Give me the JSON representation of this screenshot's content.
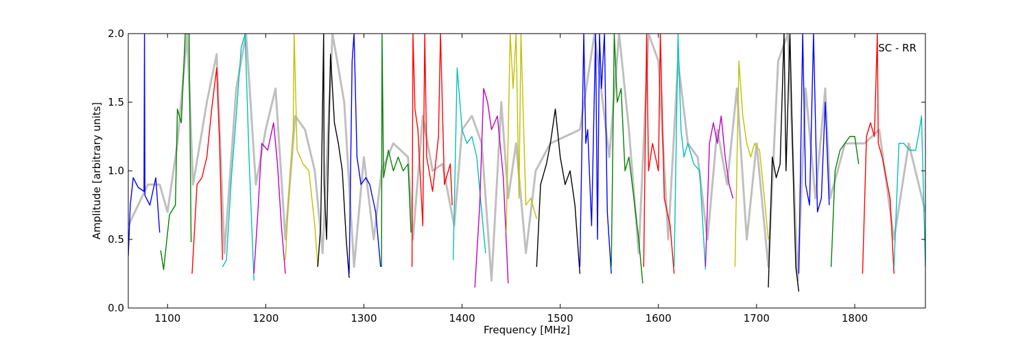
{
  "chart_data": {
    "type": "line",
    "title": "",
    "annotation": "SC - RR",
    "xlabel": "Frequency [MHz]",
    "ylabel": "Amplitude [arbitrary units]",
    "xlim": [
      1060,
      1872
    ],
    "ylim": [
      0.0,
      2.0
    ],
    "xticks": [
      1100,
      1200,
      1300,
      1400,
      1500,
      1600,
      1700,
      1800
    ],
    "xtick_labels": [
      "1100",
      "1200",
      "1300",
      "1400",
      "1500",
      "1600",
      "1700",
      "1800"
    ],
    "yticks": [
      0.0,
      0.5,
      1.0,
      1.5,
      2.0
    ],
    "ytick_labels": [
      "0.0",
      "0.5",
      "1.0",
      "1.5",
      "2.0"
    ],
    "grid": false,
    "legend": "none",
    "reference_series": {
      "color": "#bfbfbf",
      "x": [
        1060,
        1080,
        1092,
        1100,
        1110,
        1120,
        1126,
        1140,
        1150,
        1158,
        1170,
        1180,
        1190,
        1200,
        1210,
        1220,
        1230,
        1240,
        1250,
        1258,
        1268,
        1280,
        1290,
        1300,
        1310,
        1318,
        1330,
        1345,
        1350,
        1360,
        1370,
        1380,
        1392,
        1400,
        1410,
        1420,
        1430,
        1440,
        1447,
        1455,
        1465,
        1475,
        1490,
        1505,
        1520,
        1535,
        1550,
        1560,
        1570,
        1580,
        1590,
        1600,
        1610,
        1620,
        1630,
        1640,
        1650,
        1660,
        1670,
        1680,
        1690,
        1700,
        1712,
        1722,
        1732,
        1742,
        1750,
        1760,
        1770,
        1775,
        1790,
        1810,
        1825,
        1840,
        1855,
        1872
      ],
      "y": [
        0.6,
        0.9,
        0.9,
        0.7,
        1.2,
        2.0,
        0.9,
        1.5,
        1.85,
        0.4,
        1.6,
        2.0,
        0.9,
        1.3,
        1.6,
        0.5,
        1.4,
        1.3,
        1.0,
        0.4,
        2.0,
        1.5,
        0.3,
        1.1,
        0.5,
        1.0,
        1.2,
        1.1,
        0.5,
        1.4,
        1.0,
        1.05,
        0.6,
        1.3,
        1.4,
        1.2,
        0.2,
        1.5,
        0.8,
        1.2,
        0.4,
        1.0,
        1.2,
        1.25,
        1.3,
        2.0,
        1.1,
        2.0,
        1.3,
        0.4,
        2.0,
        1.8,
        0.5,
        1.8,
        1.2,
        1.1,
        0.5,
        1.3,
        0.9,
        1.6,
        0.5,
        1.2,
        0.3,
        1.8,
        2.0,
        0.2,
        1.6,
        0.8,
        1.6,
        0.8,
        1.2,
        1.2,
        1.3,
        0.5,
        1.2,
        0.7
      ]
    },
    "series": [
      {
        "color": "#0000ff",
        "x": [
          1060,
          1062,
          1065,
          1070,
          1076,
          1076.5,
          1077,
          1082,
          1088,
          1092
        ],
        "y": [
          0.38,
          0.75,
          0.95,
          0.88,
          0.85,
          2.0,
          0.82,
          0.75,
          0.95,
          0.55
        ]
      },
      {
        "color": "#008000",
        "x": [
          1093,
          1096,
          1102,
          1108,
          1110,
          1114,
          1118,
          1122,
          1124
        ],
        "y": [
          0.42,
          0.28,
          0.68,
          0.75,
          1.45,
          1.35,
          2.0,
          2.0,
          0.48
        ]
      },
      {
        "color": "#ff0000",
        "x": [
          1125,
          1130,
          1135,
          1140,
          1145,
          1150,
          1153,
          1156
        ],
        "y": [
          0.25,
          0.9,
          0.95,
          1.1,
          1.45,
          1.75,
          1.2,
          0.35
        ]
      },
      {
        "color": "#00bfbf",
        "x": [
          1156,
          1160,
          1165,
          1170,
          1175,
          1179,
          1183,
          1188
        ],
        "y": [
          0.3,
          0.35,
          0.95,
          1.4,
          1.9,
          2.0,
          1.1,
          0.2
        ]
      },
      {
        "color": "#bf00bf",
        "x": [
          1188,
          1192,
          1196,
          1202,
          1208,
          1212,
          1216,
          1220
        ],
        "y": [
          0.25,
          0.7,
          1.2,
          1.15,
          1.35,
          1.05,
          0.6,
          0.25
        ]
      },
      {
        "color": "#bfbf00",
        "x": [
          1220,
          1224,
          1228,
          1229,
          1232,
          1238,
          1244,
          1250,
          1253
        ],
        "y": [
          0.35,
          0.9,
          1.3,
          2.0,
          1.15,
          1.05,
          1.0,
          0.6,
          0.3
        ]
      },
      {
        "color": "#000000",
        "x": [
          1253,
          1256,
          1259,
          1259.5,
          1262,
          1266,
          1270,
          1274,
          1278,
          1282,
          1285
        ],
        "y": [
          0.3,
          0.6,
          2.0,
          0.9,
          0.5,
          1.85,
          1.35,
          1.2,
          1.0,
          0.5,
          0.22
        ]
      },
      {
        "color": "#0000ff",
        "x": [
          1285,
          1288,
          1290,
          1293,
          1297,
          1302,
          1306,
          1312,
          1317
        ],
        "y": [
          0.25,
          1.8,
          2.0,
          1.1,
          0.9,
          0.95,
          0.9,
          0.7,
          0.3
        ]
      },
      {
        "color": "#008000",
        "x": [
          1318,
          1318.5,
          1320,
          1325,
          1330,
          1335,
          1340,
          1345,
          1348
        ],
        "y": [
          0.3,
          2.0,
          0.95,
          1.15,
          1.0,
          1.1,
          1.0,
          1.05,
          0.55
        ]
      },
      {
        "color": "#ff0000",
        "x": [
          1349,
          1350,
          1352,
          1355,
          1360,
          1362,
          1364,
          1370,
          1376,
          1378,
          1382,
          1388,
          1390
        ],
        "y": [
          0.3,
          2.0,
          1.45,
          1.3,
          0.6,
          2.0,
          1.1,
          0.85,
          1.25,
          2.0,
          0.9,
          1.05,
          0.75
        ]
      },
      {
        "color": "#00bfbf",
        "x": [
          1391,
          1395,
          1400,
          1405,
          1410,
          1415,
          1420,
          1424
        ],
        "y": [
          0.35,
          1.75,
          1.3,
          1.2,
          1.25,
          1.1,
          0.7,
          0.4
        ]
      },
      {
        "color": "#bf00bf",
        "x": [
          1413,
          1418,
          1422,
          1426,
          1430,
          1436,
          1442,
          1447
        ],
        "y": [
          0.15,
          0.75,
          1.6,
          1.5,
          1.3,
          1.4,
          0.95,
          0.18
        ]
      },
      {
        "color": "#bfbf00",
        "x": [
          1445,
          1449,
          1452,
          1455,
          1458,
          1460,
          1465,
          1470,
          1476
        ],
        "y": [
          0.55,
          2.0,
          1.6,
          2.0,
          0.8,
          2.0,
          0.75,
          0.8,
          0.65
        ]
      },
      {
        "color": "#000000",
        "x": [
          1476,
          1480,
          1486,
          1490,
          1495,
          1500,
          1505,
          1510,
          1515,
          1520
        ],
        "y": [
          0.3,
          0.9,
          1.05,
          1.2,
          1.45,
          1.1,
          0.9,
          1.0,
          0.75,
          0.25
        ]
      },
      {
        "color": "#0000ff",
        "x": [
          1520,
          1524,
          1526,
          1528,
          1532,
          1536,
          1538,
          1540,
          1542,
          1545,
          1548,
          1552
        ],
        "y": [
          0.3,
          2.0,
          1.2,
          1.3,
          0.6,
          2.0,
          0.5,
          2.0,
          1.6,
          2.0,
          0.7,
          0.25
        ]
      },
      {
        "color": "#008000",
        "x": [
          1552,
          1555,
          1558,
          1562,
          1566,
          1570,
          1575,
          1580,
          1584
        ],
        "y": [
          0.3,
          2.0,
          1.5,
          1.6,
          1.0,
          1.1,
          0.8,
          0.5,
          0.18
        ]
      },
      {
        "color": "#ff0000",
        "x": [
          1585,
          1588,
          1590,
          1594,
          1600,
          1602,
          1606,
          1612,
          1616
        ],
        "y": [
          0.3,
          2.0,
          1.0,
          1.2,
          1.0,
          2.0,
          0.8,
          0.6,
          0.25
        ]
      },
      {
        "color": "#00bfbf",
        "x": [
          1616,
          1620,
          1623,
          1626,
          1630,
          1636,
          1642,
          1648
        ],
        "y": [
          0.3,
          2.0,
          1.3,
          1.1,
          1.2,
          1.05,
          1.0,
          0.28
        ]
      },
      {
        "color": "#bf00bf",
        "x": [
          1648,
          1652,
          1656,
          1660,
          1664,
          1668,
          1672,
          1676
        ],
        "y": [
          0.3,
          1.2,
          1.35,
          1.2,
          1.4,
          1.1,
          0.9,
          0.8
        ]
      },
      {
        "color": "#bfbf00",
        "x": [
          1678,
          1682,
          1686,
          1690,
          1694,
          1698,
          1703,
          1708,
          1712
        ],
        "y": [
          0.3,
          1.8,
          1.4,
          1.2,
          1.1,
          1.2,
          1.15,
          0.8,
          0.5
        ]
      },
      {
        "color": "#000000",
        "x": [
          1712,
          1716,
          1720,
          1724,
          1728,
          1730,
          1734,
          1738,
          1740,
          1743
        ],
        "y": [
          0.15,
          1.1,
          0.95,
          1.05,
          2.0,
          1.0,
          2.0,
          0.8,
          0.3,
          0.12
        ]
      },
      {
        "color": "#0000ff",
        "x": [
          1743,
          1747,
          1750,
          1754,
          1758,
          1762,
          1766,
          1770,
          1774
        ],
        "y": [
          0.25,
          2.0,
          0.9,
          0.75,
          2.0,
          0.7,
          0.8,
          1.5,
          0.75
        ]
      },
      {
        "color": "#008000",
        "x": [
          1776,
          1780,
          1785,
          1790,
          1795,
          1800,
          1804
        ],
        "y": [
          0.3,
          1.0,
          1.15,
          1.2,
          1.25,
          1.25,
          1.05
        ]
      },
      {
        "color": "#ff0000",
        "x": [
          1808,
          1812,
          1816,
          1820,
          1823,
          1824,
          1828,
          1832,
          1836,
          1840
        ],
        "y": [
          0.25,
          1.25,
          1.35,
          1.25,
          2.0,
          1.2,
          1.1,
          0.95,
          0.8,
          0.25
        ]
      },
      {
        "color": "#00bfbf",
        "x": [
          1840,
          1845,
          1850,
          1856,
          1862,
          1866,
          1868,
          1872
        ],
        "y": [
          0.3,
          1.2,
          1.2,
          1.15,
          1.15,
          1.3,
          1.4,
          0.3
        ]
      }
    ]
  }
}
